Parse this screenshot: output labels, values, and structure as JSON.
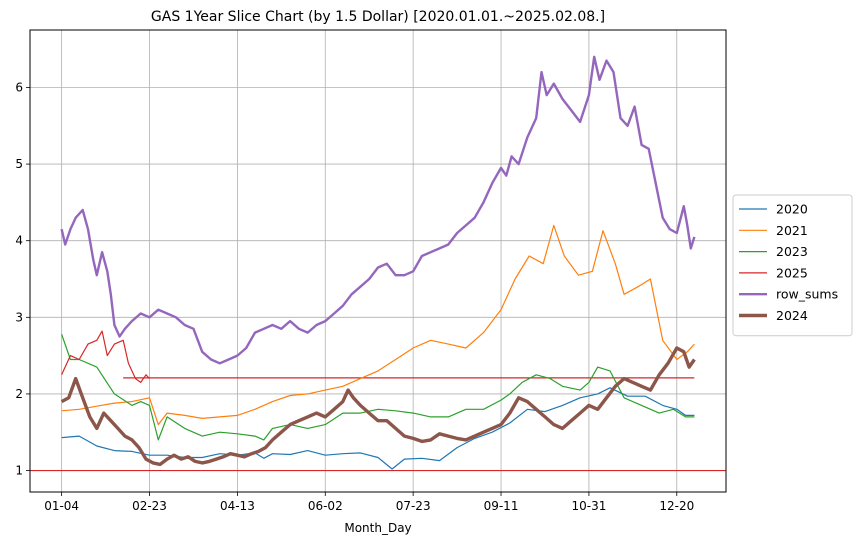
{
  "chart_data": {
    "type": "line",
    "title": "GAS 1Year Slice Chart (by 1.5 Dollar) [2020.01.01.~2025.02.08.]",
    "xlabel": "Month_Day",
    "ylabel": "",
    "x_tick_labels": [
      "01-04",
      "02-23",
      "04-13",
      "06-02",
      "07-23",
      "09-11",
      "10-31",
      "12-20"
    ],
    "x_tick_positions": [
      0,
      50,
      100,
      150,
      200,
      250,
      300,
      350
    ],
    "xlim": [
      -18,
      378
    ],
    "ylim": [
      0.72,
      6.75
    ],
    "y_ticks": [
      1,
      2,
      3,
      4,
      5,
      6
    ],
    "grid": true,
    "legend_position": "outside-right",
    "reference_lines": [
      {
        "y": 1.0,
        "color": "#d62728",
        "x_start": -18,
        "x_end": 378
      },
      {
        "y": 2.21,
        "color": "#d62728",
        "x_start": 35,
        "x_end": 360
      }
    ],
    "series": [
      {
        "name": "2020",
        "color": "#1f77b4",
        "width": 1.2,
        "points": [
          [
            0,
            1.43
          ],
          [
            10,
            1.45
          ],
          [
            20,
            1.32
          ],
          [
            30,
            1.26
          ],
          [
            40,
            1.25
          ],
          [
            50,
            1.2
          ],
          [
            60,
            1.2
          ],
          [
            70,
            1.17
          ],
          [
            80,
            1.17
          ],
          [
            90,
            1.22
          ],
          [
            100,
            1.2
          ],
          [
            110,
            1.23
          ],
          [
            115,
            1.16
          ],
          [
            120,
            1.22
          ],
          [
            130,
            1.21
          ],
          [
            140,
            1.26
          ],
          [
            150,
            1.2
          ],
          [
            160,
            1.22
          ],
          [
            170,
            1.23
          ],
          [
            180,
            1.17
          ],
          [
            188,
            1.02
          ],
          [
            195,
            1.15
          ],
          [
            205,
            1.16
          ],
          [
            215,
            1.13
          ],
          [
            225,
            1.3
          ],
          [
            235,
            1.42
          ],
          [
            245,
            1.5
          ],
          [
            255,
            1.62
          ],
          [
            265,
            1.8
          ],
          [
            275,
            1.77
          ],
          [
            285,
            1.85
          ],
          [
            295,
            1.95
          ],
          [
            305,
            2.0
          ],
          [
            312,
            2.08
          ],
          [
            322,
            1.97
          ],
          [
            332,
            1.97
          ],
          [
            342,
            1.85
          ],
          [
            350,
            1.8
          ],
          [
            355,
            1.72
          ],
          [
            360,
            1.72
          ]
        ]
      },
      {
        "name": "2021",
        "color": "#ff7f0e",
        "width": 1.2,
        "points": [
          [
            0,
            1.78
          ],
          [
            10,
            1.8
          ],
          [
            20,
            1.84
          ],
          [
            30,
            1.88
          ],
          [
            40,
            1.9
          ],
          [
            50,
            1.95
          ],
          [
            55,
            1.6
          ],
          [
            60,
            1.75
          ],
          [
            70,
            1.72
          ],
          [
            80,
            1.68
          ],
          [
            90,
            1.7
          ],
          [
            100,
            1.72
          ],
          [
            110,
            1.8
          ],
          [
            120,
            1.9
          ],
          [
            130,
            1.98
          ],
          [
            140,
            2.0
          ],
          [
            150,
            2.05
          ],
          [
            160,
            2.1
          ],
          [
            170,
            2.2
          ],
          [
            180,
            2.3
          ],
          [
            190,
            2.45
          ],
          [
            200,
            2.6
          ],
          [
            210,
            2.7
          ],
          [
            220,
            2.65
          ],
          [
            230,
            2.6
          ],
          [
            240,
            2.8
          ],
          [
            250,
            3.1
          ],
          [
            258,
            3.5
          ],
          [
            266,
            3.8
          ],
          [
            274,
            3.7
          ],
          [
            280,
            4.2
          ],
          [
            286,
            3.8
          ],
          [
            294,
            3.55
          ],
          [
            302,
            3.6
          ],
          [
            308,
            4.13
          ],
          [
            315,
            3.7
          ],
          [
            320,
            3.3
          ],
          [
            328,
            3.4
          ],
          [
            335,
            3.5
          ],
          [
            342,
            2.7
          ],
          [
            350,
            2.45
          ],
          [
            356,
            2.55
          ],
          [
            360,
            2.65
          ]
        ]
      },
      {
        "name": "2023",
        "color": "#2ca02c",
        "width": 1.2,
        "points": [
          [
            0,
            2.78
          ],
          [
            5,
            2.45
          ],
          [
            10,
            2.45
          ],
          [
            20,
            2.35
          ],
          [
            30,
            2.0
          ],
          [
            40,
            1.85
          ],
          [
            45,
            1.9
          ],
          [
            50,
            1.85
          ],
          [
            55,
            1.4
          ],
          [
            60,
            1.7
          ],
          [
            70,
            1.55
          ],
          [
            80,
            1.45
          ],
          [
            90,
            1.5
          ],
          [
            100,
            1.48
          ],
          [
            110,
            1.45
          ],
          [
            115,
            1.4
          ],
          [
            120,
            1.55
          ],
          [
            130,
            1.6
          ],
          [
            140,
            1.55
          ],
          [
            150,
            1.6
          ],
          [
            160,
            1.75
          ],
          [
            170,
            1.75
          ],
          [
            180,
            1.8
          ],
          [
            190,
            1.78
          ],
          [
            200,
            1.75
          ],
          [
            210,
            1.7
          ],
          [
            220,
            1.7
          ],
          [
            230,
            1.8
          ],
          [
            240,
            1.8
          ],
          [
            250,
            1.92
          ],
          [
            255,
            2.0
          ],
          [
            262,
            2.15
          ],
          [
            270,
            2.25
          ],
          [
            278,
            2.2
          ],
          [
            285,
            2.1
          ],
          [
            295,
            2.05
          ],
          [
            300,
            2.15
          ],
          [
            305,
            2.35
          ],
          [
            312,
            2.3
          ],
          [
            320,
            1.95
          ],
          [
            330,
            1.85
          ],
          [
            340,
            1.75
          ],
          [
            348,
            1.8
          ],
          [
            355,
            1.7
          ],
          [
            360,
            1.7
          ]
        ]
      },
      {
        "name": "2025",
        "color": "#d62728",
        "width": 1.2,
        "points": [
          [
            0,
            2.25
          ],
          [
            5,
            2.5
          ],
          [
            10,
            2.45
          ],
          [
            15,
            2.65
          ],
          [
            20,
            2.7
          ],
          [
            23,
            2.82
          ],
          [
            26,
            2.5
          ],
          [
            30,
            2.65
          ],
          [
            35,
            2.7
          ],
          [
            38,
            2.4
          ],
          [
            42,
            2.2
          ],
          [
            45,
            2.15
          ],
          [
            48,
            2.25
          ],
          [
            50,
            2.2
          ]
        ]
      },
      {
        "name": "row_sums",
        "color": "#9467bd",
        "width": 2.4,
        "points": [
          [
            0,
            4.15
          ],
          [
            2,
            3.95
          ],
          [
            5,
            4.15
          ],
          [
            8,
            4.3
          ],
          [
            12,
            4.4
          ],
          [
            15,
            4.15
          ],
          [
            18,
            3.75
          ],
          [
            20,
            3.55
          ],
          [
            23,
            3.85
          ],
          [
            26,
            3.6
          ],
          [
            28,
            3.3
          ],
          [
            30,
            2.9
          ],
          [
            33,
            2.75
          ],
          [
            36,
            2.85
          ],
          [
            40,
            2.95
          ],
          [
            45,
            3.05
          ],
          [
            50,
            3.0
          ],
          [
            55,
            3.1
          ],
          [
            60,
            3.05
          ],
          [
            65,
            3.0
          ],
          [
            70,
            2.9
          ],
          [
            75,
            2.85
          ],
          [
            80,
            2.55
          ],
          [
            85,
            2.45
          ],
          [
            90,
            2.4
          ],
          [
            95,
            2.45
          ],
          [
            100,
            2.5
          ],
          [
            105,
            2.6
          ],
          [
            110,
            2.8
          ],
          [
            115,
            2.85
          ],
          [
            120,
            2.9
          ],
          [
            125,
            2.85
          ],
          [
            130,
            2.95
          ],
          [
            135,
            2.85
          ],
          [
            140,
            2.8
          ],
          [
            145,
            2.9
          ],
          [
            150,
            2.95
          ],
          [
            155,
            3.05
          ],
          [
            160,
            3.15
          ],
          [
            165,
            3.3
          ],
          [
            170,
            3.4
          ],
          [
            175,
            3.5
          ],
          [
            180,
            3.65
          ],
          [
            185,
            3.7
          ],
          [
            190,
            3.55
          ],
          [
            195,
            3.55
          ],
          [
            200,
            3.6
          ],
          [
            205,
            3.8
          ],
          [
            210,
            3.85
          ],
          [
            215,
            3.9
          ],
          [
            220,
            3.95
          ],
          [
            225,
            4.1
          ],
          [
            230,
            4.2
          ],
          [
            235,
            4.3
          ],
          [
            240,
            4.5
          ],
          [
            245,
            4.75
          ],
          [
            250,
            4.95
          ],
          [
            253,
            4.85
          ],
          [
            256,
            5.1
          ],
          [
            260,
            5.0
          ],
          [
            265,
            5.35
          ],
          [
            270,
            5.6
          ],
          [
            273,
            6.2
          ],
          [
            276,
            5.9
          ],
          [
            280,
            6.05
          ],
          [
            285,
            5.85
          ],
          [
            290,
            5.7
          ],
          [
            295,
            5.55
          ],
          [
            300,
            5.9
          ],
          [
            303,
            6.4
          ],
          [
            306,
            6.1
          ],
          [
            310,
            6.35
          ],
          [
            314,
            6.2
          ],
          [
            318,
            5.6
          ],
          [
            322,
            5.5
          ],
          [
            326,
            5.75
          ],
          [
            330,
            5.25
          ],
          [
            334,
            5.2
          ],
          [
            338,
            4.75
          ],
          [
            342,
            4.3
          ],
          [
            346,
            4.15
          ],
          [
            350,
            4.1
          ],
          [
            354,
            4.45
          ],
          [
            356,
            4.2
          ],
          [
            358,
            3.9
          ],
          [
            360,
            4.05
          ]
        ]
      },
      {
        "name": "2024",
        "color": "#8c564b",
        "width": 3.4,
        "points": [
          [
            0,
            1.9
          ],
          [
            4,
            1.95
          ],
          [
            8,
            2.2
          ],
          [
            12,
            1.95
          ],
          [
            16,
            1.7
          ],
          [
            20,
            1.55
          ],
          [
            24,
            1.75
          ],
          [
            28,
            1.65
          ],
          [
            32,
            1.55
          ],
          [
            36,
            1.45
          ],
          [
            40,
            1.4
          ],
          [
            44,
            1.3
          ],
          [
            48,
            1.15
          ],
          [
            52,
            1.1
          ],
          [
            56,
            1.08
          ],
          [
            60,
            1.15
          ],
          [
            64,
            1.2
          ],
          [
            68,
            1.15
          ],
          [
            72,
            1.18
          ],
          [
            76,
            1.12
          ],
          [
            80,
            1.1
          ],
          [
            84,
            1.12
          ],
          [
            88,
            1.15
          ],
          [
            92,
            1.18
          ],
          [
            96,
            1.22
          ],
          [
            100,
            1.2
          ],
          [
            104,
            1.18
          ],
          [
            108,
            1.22
          ],
          [
            112,
            1.25
          ],
          [
            116,
            1.3
          ],
          [
            120,
            1.4
          ],
          [
            125,
            1.5
          ],
          [
            130,
            1.6
          ],
          [
            135,
            1.65
          ],
          [
            140,
            1.7
          ],
          [
            145,
            1.75
          ],
          [
            150,
            1.7
          ],
          [
            155,
            1.8
          ],
          [
            160,
            1.9
          ],
          [
            163,
            2.05
          ],
          [
            166,
            1.95
          ],
          [
            170,
            1.85
          ],
          [
            175,
            1.75
          ],
          [
            180,
            1.65
          ],
          [
            185,
            1.65
          ],
          [
            190,
            1.55
          ],
          [
            195,
            1.45
          ],
          [
            200,
            1.42
          ],
          [
            205,
            1.38
          ],
          [
            210,
            1.4
          ],
          [
            215,
            1.48
          ],
          [
            220,
            1.45
          ],
          [
            225,
            1.42
          ],
          [
            230,
            1.4
          ],
          [
            235,
            1.45
          ],
          [
            240,
            1.5
          ],
          [
            245,
            1.55
          ],
          [
            250,
            1.6
          ],
          [
            255,
            1.75
          ],
          [
            260,
            1.95
          ],
          [
            265,
            1.9
          ],
          [
            270,
            1.8
          ],
          [
            275,
            1.7
          ],
          [
            280,
            1.6
          ],
          [
            285,
            1.55
          ],
          [
            290,
            1.65
          ],
          [
            295,
            1.75
          ],
          [
            300,
            1.85
          ],
          [
            305,
            1.8
          ],
          [
            310,
            1.95
          ],
          [
            315,
            2.1
          ],
          [
            320,
            2.2
          ],
          [
            325,
            2.15
          ],
          [
            330,
            2.1
          ],
          [
            335,
            2.05
          ],
          [
            340,
            2.25
          ],
          [
            345,
            2.4
          ],
          [
            350,
            2.6
          ],
          [
            354,
            2.55
          ],
          [
            357,
            2.35
          ],
          [
            360,
            2.45
          ]
        ]
      }
    ]
  }
}
